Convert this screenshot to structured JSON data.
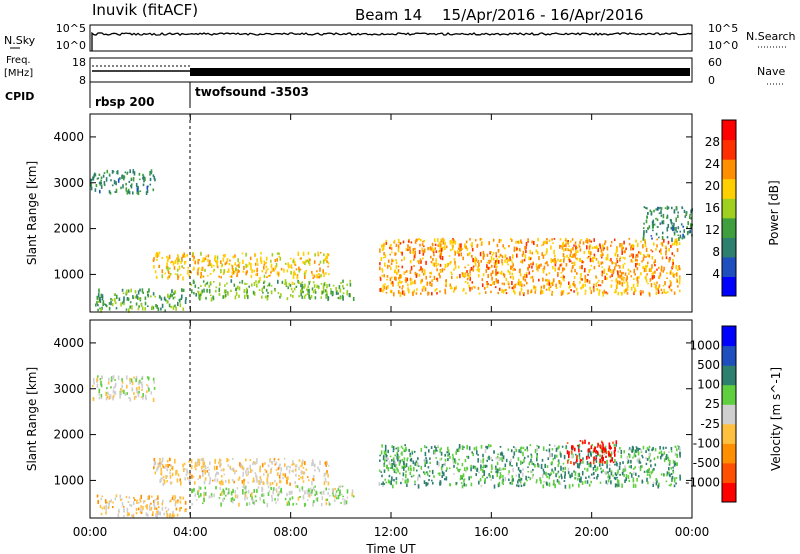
{
  "header": {
    "station": "Inuvik (fitACF)",
    "beam": "Beam 14",
    "dates": "15/Apr/2016 - 16/Apr/2016"
  },
  "sky_panel": {
    "left_label": "N.Sky",
    "right_label": "N.Search",
    "left_ticks": [
      "10^5",
      "10^0"
    ],
    "right_ticks": [
      "10^5",
      "10^0"
    ]
  },
  "freq_panel": {
    "left_label_1": "Freq.",
    "left_label_2": "[MHz]",
    "right_label": "Nave",
    "left_ticks": [
      "18",
      "8"
    ],
    "right_ticks": [
      "60",
      "0"
    ]
  },
  "cpid": {
    "label": "CPID",
    "programs": [
      {
        "name": "rbsp 200",
        "start_hour": 0
      },
      {
        "name": "twofsound -3503",
        "start_hour": 4
      }
    ]
  },
  "time_axis": {
    "label": "Time UT",
    "ticks": [
      "00:00",
      "04:00",
      "08:00",
      "12:00",
      "16:00",
      "20:00",
      "00:00"
    ],
    "start_hour": 0,
    "end_hour": 24
  },
  "range_axis": {
    "label": "Slant Range [km]",
    "ticks": [
      "1000",
      "2000",
      "3000",
      "4000"
    ],
    "min": 180,
    "max": 4500
  },
  "chart_data": [
    {
      "type": "heatmap",
      "parameter": "power",
      "colorbar_label": "Power [dB]",
      "colorbar_ticks": [
        "28",
        "24",
        "20",
        "16",
        "12",
        "8",
        "4"
      ],
      "range": [
        0,
        32
      ],
      "x_axis": "Time UT (hours)",
      "y_axis": "Slant Range [km]",
      "colors": [
        "#0000ff",
        "#1f4fbf",
        "#2f7f6f",
        "#3f9f3f",
        "#9fcf1f",
        "#ffcf00",
        "#ff8f00",
        "#ff2f00",
        "#ff0000"
      ],
      "scatter_regions": [
        {
          "t": [
            0.0,
            2.6
          ],
          "r": [
            2800,
            3300
          ],
          "level": 10
        },
        {
          "t": [
            0.2,
            3.8
          ],
          "r": [
            230,
            700
          ],
          "level": 12
        },
        {
          "t": [
            2.5,
            9.5
          ],
          "r": [
            950,
            1500
          ],
          "level": 20
        },
        {
          "t": [
            4.0,
            10.5
          ],
          "r": [
            500,
            900
          ],
          "level": 14
        },
        {
          "t": [
            11.5,
            23.5
          ],
          "r": [
            600,
            1800
          ],
          "level": 22
        },
        {
          "t": [
            22.0,
            24.0
          ],
          "r": [
            1800,
            2500
          ],
          "level": 10
        }
      ]
    },
    {
      "type": "heatmap",
      "parameter": "velocity",
      "colorbar_label": "Velocity [m s^-1]",
      "colorbar_ticks": [
        "1000",
        "500",
        "100",
        "25",
        "-25",
        "-100",
        "-500",
        "-1000"
      ],
      "range": [
        -1000,
        1000
      ],
      "x_axis": "Time UT (hours)",
      "y_axis": "Slant Range [km]",
      "colors": [
        "#ff0000",
        "#ff4f00",
        "#ff8f00",
        "#ffbf3f",
        "#cfcfcf",
        "#5fcf3f",
        "#2f7f6f",
        "#1f4fbf",
        "#0000ff"
      ],
      "scatter_regions": [
        {
          "t": [
            0.0,
            2.6
          ],
          "r": [
            2800,
            3300
          ],
          "level": 0
        },
        {
          "t": [
            0.2,
            3.8
          ],
          "r": [
            230,
            700
          ],
          "level": -200
        },
        {
          "t": [
            2.5,
            9.5
          ],
          "r": [
            950,
            1500
          ],
          "level": -150
        },
        {
          "t": [
            4.0,
            10.5
          ],
          "r": [
            500,
            900
          ],
          "level": 80
        },
        {
          "t": [
            11.5,
            23.5
          ],
          "r": [
            900,
            1800
          ],
          "level": 300
        },
        {
          "t": [
            19.0,
            21.0
          ],
          "r": [
            1400,
            1900
          ],
          "level": -900
        }
      ]
    }
  ]
}
